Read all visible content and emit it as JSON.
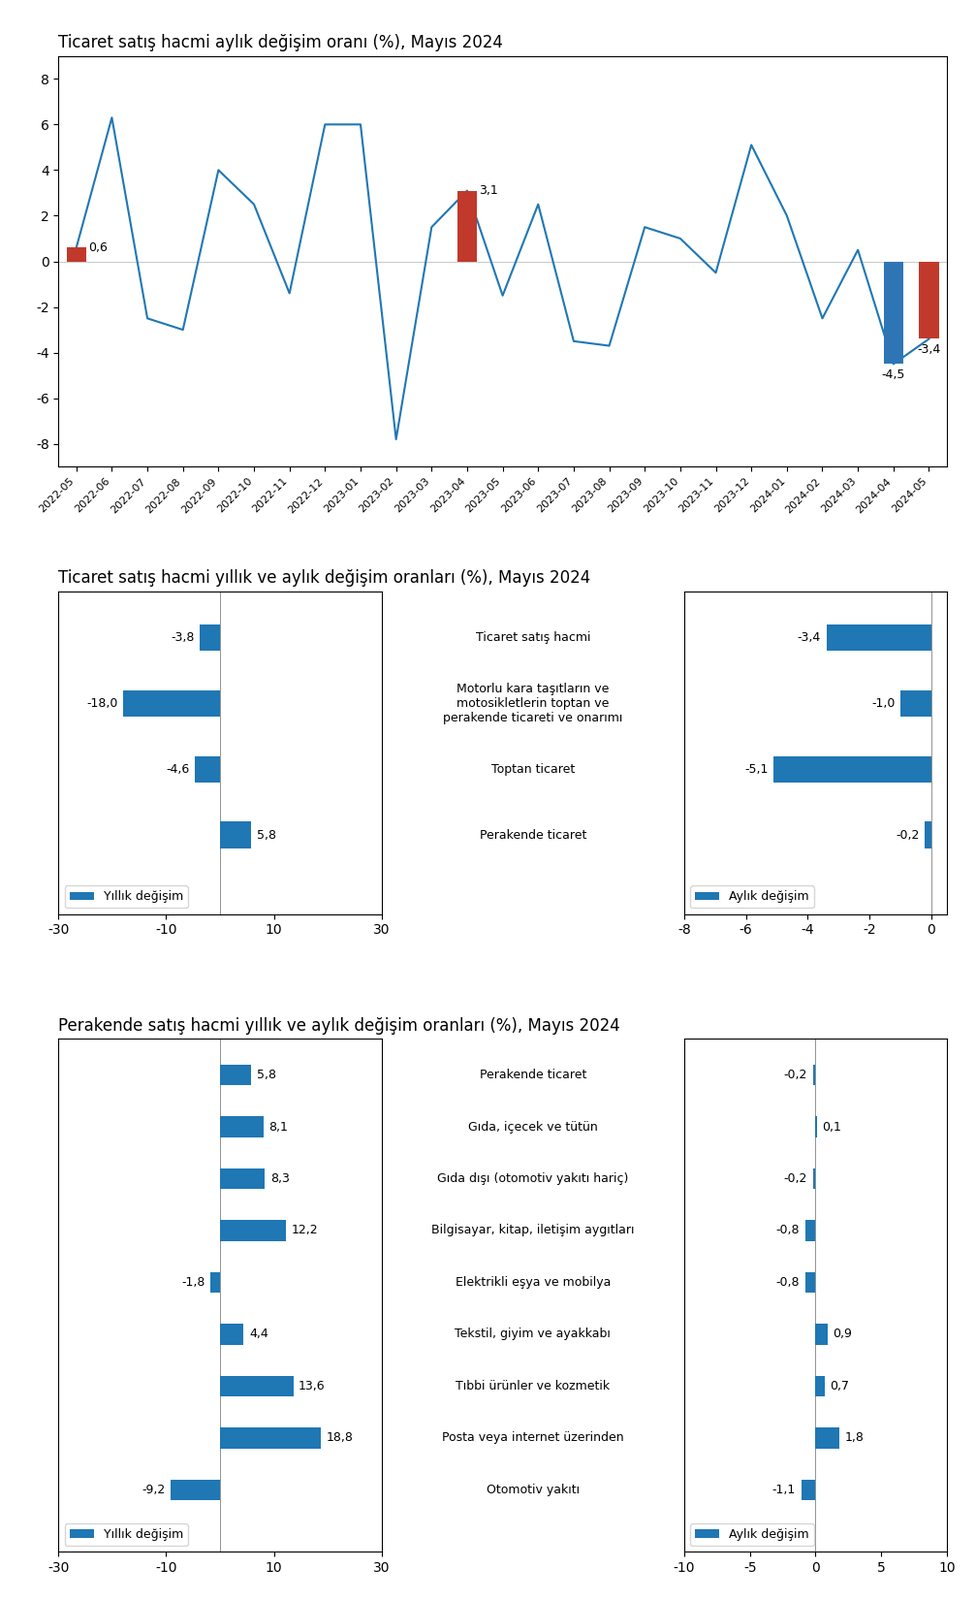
{
  "chart_data": [
    {
      "type": "line",
      "title": "Ticaret satış hacmi aylık değişim oranı (%), Mayıs 2024",
      "categories": [
        "2022-05",
        "2022-06",
        "2022-07",
        "2022-08",
        "2022-09",
        "2022-10",
        "2022-11",
        "2022-12",
        "2023-01",
        "2023-02",
        "2023-03",
        "2023-04",
        "2023-05",
        "2023-06",
        "2023-07",
        "2023-08",
        "2023-09",
        "2023-10",
        "2023-11",
        "2023-12",
        "2024-01",
        "2024-02",
        "2024-03",
        "2024-04",
        "2024-05"
      ],
      "series": [
        {
          "type": "line",
          "values": [
            0.6,
            6.3,
            -2.5,
            -3.0,
            4.0,
            2.5,
            -1.4,
            6.0,
            6.0,
            -7.8,
            1.5,
            3.1,
            -1.5,
            2.5,
            -3.5,
            -3.7,
            1.5,
            1.0,
            -0.5,
            5.1,
            2.0,
            -2.5,
            0.5,
            -4.5,
            -3.4
          ]
        },
        {
          "type": "bar",
          "values": [
            0.6,
            null,
            null,
            null,
            null,
            null,
            null,
            null,
            null,
            null,
            null,
            3.1,
            null,
            null,
            null,
            null,
            null,
            null,
            null,
            null,
            null,
            null,
            null,
            -4.5,
            -3.4
          ],
          "colors": [
            "#c0392b",
            null,
            null,
            null,
            null,
            null,
            null,
            null,
            null,
            null,
            null,
            "#c0392b",
            null,
            null,
            null,
            null,
            null,
            null,
            null,
            null,
            null,
            null,
            null,
            "#2e75b6",
            "#c0392b"
          ],
          "value_labels": [
            "0,6",
            null,
            null,
            null,
            null,
            null,
            null,
            null,
            null,
            null,
            null,
            "3,1",
            null,
            null,
            null,
            null,
            null,
            null,
            null,
            null,
            null,
            null,
            null,
            "-4,5",
            "-3,4"
          ]
        }
      ],
      "data_labels": true,
      "ylim": [
        -9,
        9
      ],
      "yticks": [
        -8,
        -6,
        -4,
        -2,
        0,
        2,
        4,
        6,
        8
      ]
    },
    {
      "type": "bar",
      "orientation": "horizontal",
      "title": "Ticaret satış hacmi yıllık ve aylık değişim oranları (%), Mayıs 2024",
      "categories": [
        "Ticaret satış hacmi",
        "Motorlu kara taşıtların ve\nmotosikletlerin toptan ve\nperakende ticareti ve onarımı",
        "Toptan ticaret",
        "Perakende ticaret"
      ],
      "series": [
        {
          "name": "Yıllık değişim",
          "values": [
            -3.8,
            -18.0,
            -4.6,
            5.8
          ],
          "value_labels": [
            "-3,8",
            "-18,0",
            "-4,6",
            "5,8"
          ]
        },
        {
          "name": "Aylık değişim",
          "axis": "x2",
          "values": [
            -3.4,
            -1.0,
            -5.1,
            -0.2
          ],
          "value_labels": [
            "-3,4",
            "-1,0",
            "-5,1",
            "-0,2"
          ]
        }
      ],
      "data_labels": true,
      "legend": "lower left",
      "xlim": [
        -30,
        30
      ],
      "xticks": [
        -30,
        -10,
        10,
        30
      ],
      "x2lim": [
        -8,
        0.5
      ],
      "x2ticks": [
        -8,
        -6,
        -4,
        -2,
        0
      ]
    },
    {
      "type": "bar",
      "orientation": "horizontal",
      "title": "Perakende satış hacmi yıllık ve aylık değişim oranları (%), Mayıs 2024",
      "categories": [
        "Perakende ticaret",
        "Gıda, içecek ve tütün",
        "Gıda dışı (otomotiv yakıtı hariç)",
        "Bilgisayar, kitap, iletişim aygıtları",
        "Elektrikli eşya ve mobilya",
        "Tekstil, giyim ve ayakkabı",
        "Tıbbi ürünler ve kozmetik",
        "Posta veya internet üzerinden",
        "Otomotiv yakıtı"
      ],
      "series": [
        {
          "name": "Yıllık değişim",
          "values": [
            5.8,
            8.1,
            8.3,
            12.2,
            -1.8,
            4.4,
            13.6,
            18.8,
            -9.2
          ],
          "value_labels": [
            "5,8",
            "8,1",
            "8,3",
            "12,2",
            "-1,8",
            "4,4",
            "13,6",
            "18,8",
            "-9,2"
          ]
        },
        {
          "name": "Aylık değişim",
          "axis": "x2",
          "values": [
            -0.2,
            0.1,
            -0.2,
            -0.8,
            -0.8,
            0.9,
            0.7,
            1.8,
            -1.1
          ],
          "value_labels": [
            "-0,2",
            "0,1",
            "-0,2",
            "-0,8",
            "-0,8",
            "0,9",
            "0,7",
            "1,8",
            "-1,1"
          ]
        }
      ],
      "data_labels": true,
      "legend": "lower left",
      "xlim": [
        -30,
        30
      ],
      "xticks": [
        -30,
        -10,
        10,
        30
      ],
      "x2lim": [
        -10,
        10
      ],
      "x2ticks": [
        -10,
        -5,
        0,
        5,
        10
      ]
    }
  ]
}
